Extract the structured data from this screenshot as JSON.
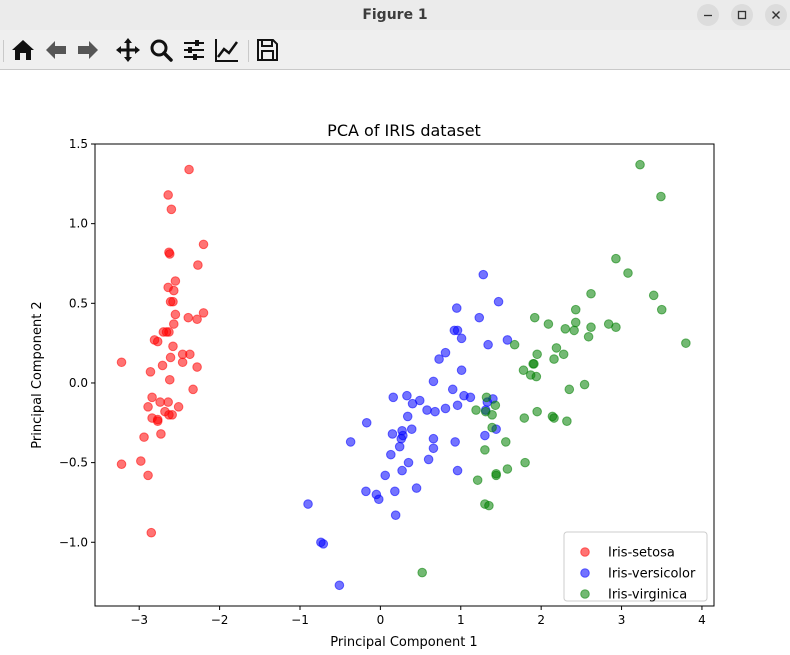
{
  "window": {
    "title": "Figure 1",
    "minimize_icon": "minimize-icon",
    "maximize_icon": "maximize-icon",
    "close_icon": "close-icon"
  },
  "toolbar": {
    "buttons": [
      "home-icon",
      "back-arrow-icon",
      "forward-arrow-icon",
      "pan-icon",
      "zoom-icon",
      "subplots-config-icon",
      "edit-axis-icon",
      "save-icon"
    ]
  },
  "chart_data": {
    "type": "scatter",
    "title": "PCA of IRIS dataset",
    "xlabel": "Principal Component 1",
    "ylabel": "Principal Component 2",
    "xlim": [
      -3.55,
      4.15
    ],
    "ylim": [
      -1.4,
      1.5
    ],
    "xticks": [
      -3,
      -2,
      -1,
      0,
      1,
      2,
      3,
      4
    ],
    "yticks": [
      -1.0,
      -0.5,
      0.0,
      0.5,
      1.0,
      1.5
    ],
    "xtick_labels": [
      "−3",
      "−2",
      "−1",
      "0",
      "1",
      "2",
      "3",
      "4"
    ],
    "ytick_labels": [
      "−1.0",
      "−0.5",
      "0.0",
      "0.5",
      "1.0",
      "1.5"
    ],
    "grid": false,
    "legend_position": "bottom-right",
    "marker_alpha": 0.55,
    "series": [
      {
        "name": "Iris-setosa",
        "color": "#ff0000",
        "points": [
          [
            -2.64,
            1.18
          ],
          [
            -2.6,
            1.09
          ],
          [
            -2.38,
            1.34
          ],
          [
            -2.2,
            0.87
          ],
          [
            -2.63,
            0.82
          ],
          [
            -2.62,
            0.81
          ],
          [
            -2.27,
            0.74
          ],
          [
            -2.55,
            0.64
          ],
          [
            -2.64,
            0.6
          ],
          [
            -2.57,
            0.58
          ],
          [
            -2.58,
            0.51
          ],
          [
            -2.61,
            0.51
          ],
          [
            -2.2,
            0.44
          ],
          [
            -2.55,
            0.43
          ],
          [
            -2.39,
            0.41
          ],
          [
            -2.28,
            0.4
          ],
          [
            -2.57,
            0.37
          ],
          [
            -2.7,
            0.32
          ],
          [
            -2.63,
            0.32
          ],
          [
            -2.66,
            0.32
          ],
          [
            -2.81,
            0.27
          ],
          [
            -2.77,
            0.26
          ],
          [
            -2.58,
            0.23
          ],
          [
            -2.37,
            0.18
          ],
          [
            -2.61,
            0.16
          ],
          [
            -2.46,
            0.13
          ],
          [
            -3.22,
            0.13
          ],
          [
            -2.28,
            0.1
          ],
          [
            -2.71,
            0.11
          ],
          [
            -2.86,
            0.07
          ],
          [
            -2.62,
            0.02
          ],
          [
            -2.33,
            -0.04
          ],
          [
            -2.84,
            -0.09
          ],
          [
            -2.64,
            -0.12
          ],
          [
            -2.74,
            -0.12
          ],
          [
            -2.89,
            -0.15
          ],
          [
            -2.51,
            -0.15
          ],
          [
            -2.68,
            -0.18
          ],
          [
            -2.63,
            -0.2
          ],
          [
            -2.59,
            -0.2
          ],
          [
            -2.84,
            -0.22
          ],
          [
            -2.77,
            -0.24
          ],
          [
            -2.94,
            -0.34
          ],
          [
            -2.73,
            -0.32
          ],
          [
            -2.98,
            -0.49
          ],
          [
            -3.22,
            -0.51
          ],
          [
            -2.89,
            -0.58
          ],
          [
            -2.85,
            -0.94
          ],
          [
            -2.77,
            -0.23
          ],
          [
            -2.46,
            0.18
          ]
        ]
      },
      {
        "name": "Iris-versicolor",
        "color": "#0000ff",
        "points": [
          [
            1.28,
            0.68
          ],
          [
            1.47,
            0.51
          ],
          [
            0.95,
            0.47
          ],
          [
            1.23,
            0.41
          ],
          [
            0.92,
            0.33
          ],
          [
            0.96,
            0.33
          ],
          [
            1.01,
            0.28
          ],
          [
            1.58,
            0.27
          ],
          [
            1.34,
            0.24
          ],
          [
            0.81,
            0.19
          ],
          [
            0.73,
            0.15
          ],
          [
            1.01,
            0.08
          ],
          [
            0.66,
            0.01
          ],
          [
            0.9,
            -0.04
          ],
          [
            0.33,
            -0.08
          ],
          [
            1.04,
            -0.08
          ],
          [
            0.49,
            -0.11
          ],
          [
            1.4,
            -0.1
          ],
          [
            0.16,
            -0.09
          ],
          [
            1.12,
            -0.09
          ],
          [
            1.33,
            -0.12
          ],
          [
            0.96,
            -0.14
          ],
          [
            0.81,
            -0.16
          ],
          [
            1.31,
            -0.17
          ],
          [
            0.58,
            -0.17
          ],
          [
            0.34,
            -0.21
          ],
          [
            0.68,
            -0.18
          ],
          [
            -0.17,
            -0.25
          ],
          [
            0.39,
            -0.29
          ],
          [
            1.44,
            -0.29
          ],
          [
            0.27,
            -0.3
          ],
          [
            0.15,
            -0.32
          ],
          [
            0.28,
            -0.33
          ],
          [
            1.3,
            -0.33
          ],
          [
            0.26,
            -0.35
          ],
          [
            0.66,
            -0.35
          ],
          [
            -0.37,
            -0.37
          ],
          [
            0.93,
            -0.37
          ],
          [
            0.66,
            -0.41
          ],
          [
            0.24,
            -0.4
          ],
          [
            0.6,
            -0.48
          ],
          [
            0.35,
            -0.5
          ],
          [
            0.27,
            -0.55
          ],
          [
            0.96,
            -0.55
          ],
          [
            0.06,
            -0.58
          ],
          [
            -0.18,
            -0.68
          ],
          [
            0.45,
            -0.66
          ],
          [
            -0.05,
            -0.7
          ],
          [
            0.18,
            -0.68
          ],
          [
            -0.02,
            -0.73
          ],
          [
            -0.9,
            -0.76
          ],
          [
            0.19,
            -0.83
          ],
          [
            -0.74,
            -1.0
          ],
          [
            -0.71,
            -1.01
          ],
          [
            -0.51,
            -1.27
          ],
          [
            0.13,
            -0.45
          ],
          [
            0.4,
            -0.13
          ]
        ]
      },
      {
        "name": "Iris-virginica",
        "color": "#008000",
        "points": [
          [
            3.23,
            1.37
          ],
          [
            3.49,
            1.17
          ],
          [
            2.93,
            0.78
          ],
          [
            3.08,
            0.69
          ],
          [
            2.62,
            0.56
          ],
          [
            3.4,
            0.55
          ],
          [
            2.43,
            0.46
          ],
          [
            3.5,
            0.46
          ],
          [
            1.92,
            0.41
          ],
          [
            2.43,
            0.38
          ],
          [
            2.09,
            0.37
          ],
          [
            2.84,
            0.37
          ],
          [
            2.93,
            0.35
          ],
          [
            2.62,
            0.35
          ],
          [
            2.3,
            0.34
          ],
          [
            2.41,
            0.33
          ],
          [
            2.59,
            0.29
          ],
          [
            3.8,
            0.25
          ],
          [
            1.67,
            0.24
          ],
          [
            2.19,
            0.22
          ],
          [
            1.95,
            0.18
          ],
          [
            2.28,
            0.18
          ],
          [
            2.16,
            0.15
          ],
          [
            1.9,
            0.12
          ],
          [
            1.91,
            0.12
          ],
          [
            1.78,
            0.08
          ],
          [
            1.87,
            0.05
          ],
          [
            1.94,
            0.04
          ],
          [
            2.54,
            -0.01
          ],
          [
            2.35,
            -0.04
          ],
          [
            1.32,
            -0.09
          ],
          [
            1.43,
            -0.14
          ],
          [
            1.31,
            -0.18
          ],
          [
            1.19,
            -0.17
          ],
          [
            1.95,
            -0.18
          ],
          [
            1.39,
            -0.2
          ],
          [
            1.79,
            -0.22
          ],
          [
            2.14,
            -0.21
          ],
          [
            2.16,
            -0.22
          ],
          [
            2.32,
            -0.24
          ],
          [
            1.39,
            -0.28
          ],
          [
            1.56,
            -0.37
          ],
          [
            1.3,
            -0.42
          ],
          [
            1.8,
            -0.5
          ],
          [
            1.58,
            -0.54
          ],
          [
            1.44,
            -0.57
          ],
          [
            1.44,
            -0.58
          ],
          [
            1.21,
            -0.61
          ],
          [
            1.3,
            -0.76
          ],
          [
            1.35,
            -0.77
          ],
          [
            0.52,
            -1.19
          ]
        ]
      }
    ]
  }
}
